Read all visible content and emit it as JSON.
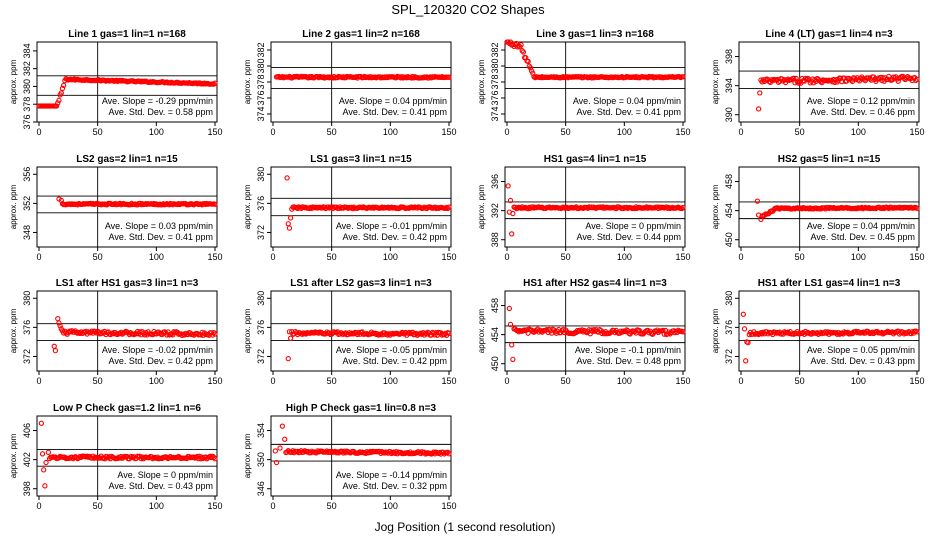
{
  "figure": {
    "title": "SPL_120320  CO2 Shapes",
    "xlabel": "Jog Position (1 second resolution)",
    "ylabel": "approx. ppm",
    "point_color": "#ff0000"
  },
  "chart_data": [
    {
      "type": "scatter",
      "title": "Line 1 gas=1 lin=1 n=168",
      "xlim": [
        0,
        150
      ],
      "xticks": [
        0,
        50,
        100,
        150
      ],
      "ylim": [
        376,
        385
      ],
      "yticks": [
        376,
        378,
        380,
        382,
        384
      ],
      "hlines": [
        381.2,
        379.0
      ],
      "vline": 50,
      "slope": "Ave. Slope = -0.29  ppm/min",
      "std": "Ave. Std. Dev. = 0.58  ppm",
      "series": [
        {
          "segments": [
            {
              "x0": 0,
              "x1": 15,
              "step": 1,
              "y0": 377.8,
              "y1": 377.8,
              "noise": 0
            },
            {
              "x0": 16,
              "x1": 22,
              "step": 1,
              "y0": 378.0,
              "y1": 380.6,
              "noise": 0.2
            },
            {
              "x0": 23,
              "x1": 150,
              "step": 1,
              "y0": 380.8,
              "y1": 380.3,
              "noise": 0.07
            }
          ]
        }
      ]
    },
    {
      "type": "scatter",
      "title": "Line 2 gas=1 lin=2 n=168",
      "xlim": [
        0,
        150
      ],
      "xticks": [
        0,
        50,
        100,
        150
      ],
      "ylim": [
        373,
        383
      ],
      "yticks": [
        374,
        376,
        378,
        380,
        382
      ],
      "hlines": [
        379.8,
        377.2
      ],
      "vline": 50,
      "slope": "Ave. Slope = 0.04  ppm/min",
      "std": "Ave. Std. Dev. = 0.41  ppm",
      "series": [
        {
          "segments": [
            {
              "x0": 3,
              "x1": 150,
              "step": 1,
              "y0": 378.6,
              "y1": 378.6,
              "noise": 0.1
            }
          ]
        }
      ]
    },
    {
      "type": "scatter",
      "title": "Line 3 gas=1 lin=3 n=168",
      "xlim": [
        0,
        150
      ],
      "xticks": [
        0,
        50,
        100,
        150
      ],
      "ylim": [
        373,
        383
      ],
      "yticks": [
        374,
        376,
        378,
        380,
        382
      ],
      "hlines": [
        379.8,
        377.2
      ],
      "vline": 50,
      "slope": "Ave. Slope = 0.04  ppm/min",
      "std": "Ave. Std. Dev. = 0.41  ppm",
      "series": [
        {
          "segments": [
            {
              "x0": 0,
              "x1": 12,
              "step": 1,
              "y0": 383.0,
              "y1": 382.4,
              "noise": 0.25
            },
            {
              "x0": 13,
              "x1": 22,
              "step": 1,
              "y0": 382.0,
              "y1": 379.0,
              "noise": 0.3
            },
            {
              "x0": 23,
              "x1": 150,
              "step": 1,
              "y0": 378.6,
              "y1": 378.6,
              "noise": 0.08
            }
          ]
        }
      ]
    },
    {
      "type": "scatter",
      "title": "Line 4 (LT) gas=1 lin=4 n=3",
      "xlim": [
        0,
        150
      ],
      "xticks": [
        0,
        50,
        100,
        150
      ],
      "ylim": [
        389,
        400
      ],
      "yticks": [
        390,
        394,
        398
      ],
      "hlines": [
        396.0,
        393.6
      ],
      "vline": 50,
      "slope": "Ave. Slope = 0.12  ppm/min",
      "std": "Ave. Std. Dev. = 0.46  ppm",
      "series": [
        {
          "points": [
            [
              15,
              390.8
            ],
            [
              16,
              393.0
            ]
          ],
          "segments": [
            {
              "x0": 17,
              "x1": 150,
              "step": 1,
              "y0": 394.6,
              "y1": 395.0,
              "noise": 0.35
            }
          ]
        }
      ]
    },
    {
      "type": "scatter",
      "title": "LS2 gas=2 lin=1 n=15",
      "xlim": [
        0,
        150
      ],
      "xticks": [
        0,
        50,
        100,
        150
      ],
      "ylim": [
        346,
        357
      ],
      "yticks": [
        348,
        352,
        356
      ],
      "hlines": [
        353.0,
        350.7
      ],
      "vline": 50,
      "slope": "Ave. Slope = 0.03  ppm/min",
      "std": "Ave. Std. Dev. = 0.41  ppm",
      "series": [
        {
          "points": [
            [
              17,
              352.6
            ],
            [
              19,
              352.4
            ]
          ],
          "segments": [
            {
              "x0": 20,
              "x1": 150,
              "step": 1,
              "y0": 351.9,
              "y1": 351.9,
              "noise": 0.1
            }
          ]
        }
      ]
    },
    {
      "type": "scatter",
      "title": "LS1 gas=3 lin=1 n=15",
      "xlim": [
        0,
        150
      ],
      "xticks": [
        0,
        50,
        100,
        150
      ],
      "ylim": [
        370,
        381
      ],
      "yticks": [
        372,
        376,
        380
      ],
      "hlines": [
        376.7,
        374.3
      ],
      "vline": 50,
      "slope": "Ave. Slope = -0.01  ppm/min",
      "std": "Ave. Std. Dev. = 0.42  ppm",
      "series": [
        {
          "points": [
            [
              12,
              379.5
            ],
            [
              13,
              373.2
            ],
            [
              14,
              372.6
            ],
            [
              15,
              374.0
            ],
            [
              16,
              375.2
            ]
          ],
          "segments": [
            {
              "x0": 17,
              "x1": 150,
              "step": 1,
              "y0": 375.4,
              "y1": 375.4,
              "noise": 0.12
            }
          ]
        }
      ]
    },
    {
      "type": "scatter",
      "title": "HS1 gas=4 lin=1 n=15",
      "xlim": [
        0,
        150
      ],
      "xticks": [
        0,
        50,
        100,
        150
      ],
      "ylim": [
        387,
        398
      ],
      "yticks": [
        388,
        392,
        396
      ],
      "hlines": [
        393.2,
        390.9
      ],
      "vline": 50,
      "slope": "Ave. Slope = 0  ppm/min",
      "std": "Ave. Std. Dev. = 0.44  ppm",
      "series": [
        {
          "points": [
            [
              1,
              395.4
            ],
            [
              2,
              391.8
            ],
            [
              3,
              393.4
            ],
            [
              4,
              388.8
            ],
            [
              5,
              391.6
            ]
          ],
          "segments": [
            {
              "x0": 6,
              "x1": 150,
              "step": 1,
              "y0": 392.4,
              "y1": 392.4,
              "noise": 0.12
            }
          ]
        }
      ]
    },
    {
      "type": "scatter",
      "title": "HS2 gas=5 lin=1 n=15",
      "xlim": [
        0,
        150
      ],
      "xticks": [
        0,
        50,
        100,
        150
      ],
      "ylim": [
        449,
        460
      ],
      "yticks": [
        450,
        454,
        458
      ],
      "hlines": [
        455.2,
        452.9
      ],
      "vline": 50,
      "slope": "Ave. Slope = 0.04  ppm/min",
      "std": "Ave. Std. Dev. = 0.45  ppm",
      "series": [
        {
          "points": [
            [
              14,
              455.3
            ],
            [
              15,
              453.4
            ],
            [
              17,
              452.8
            ]
          ],
          "segments": [
            {
              "x0": 18,
              "x1": 28,
              "step": 1,
              "y0": 453.2,
              "y1": 454.1,
              "noise": 0.1
            },
            {
              "x0": 29,
              "x1": 150,
              "step": 1,
              "y0": 454.3,
              "y1": 454.4,
              "noise": 0.1
            }
          ]
        }
      ]
    },
    {
      "type": "scatter",
      "title": "LS1 after HS1 gas=3 lin=1 n=3",
      "xlim": [
        0,
        150
      ],
      "xticks": [
        0,
        50,
        100,
        150
      ],
      "ylim": [
        370,
        381
      ],
      "yticks": [
        372,
        376,
        380
      ],
      "hlines": [
        376.5,
        374.2
      ],
      "vline": 50,
      "slope": "Ave. Slope = -0.02  ppm/min",
      "std": "Ave. Std. Dev. = 0.42  ppm",
      "series": [
        {
          "points": [
            [
              13,
              373.4
            ],
            [
              14,
              372.8
            ],
            [
              16,
              377.2
            ],
            [
              17,
              376.6
            ],
            [
              18,
              376.2
            ],
            [
              19,
              375.8
            ]
          ],
          "segments": [
            {
              "x0": 20,
              "x1": 150,
              "step": 1,
              "y0": 375.3,
              "y1": 375.1,
              "noise": 0.25
            }
          ]
        }
      ]
    },
    {
      "type": "scatter",
      "title": "LS1 after LS2 gas=3 lin=1 n=3",
      "xlim": [
        0,
        150
      ],
      "xticks": [
        0,
        50,
        100,
        150
      ],
      "ylim": [
        370,
        381
      ],
      "yticks": [
        372,
        376,
        380
      ],
      "hlines": [
        376.5,
        374.2
      ],
      "vline": 50,
      "slope": "Ave. Slope = -0.05  ppm/min",
      "std": "Ave. Std. Dev. = 0.42  ppm",
      "series": [
        {
          "points": [
            [
              13,
              371.7
            ],
            [
              14,
              375.4
            ],
            [
              15,
              374.5
            ]
          ],
          "segments": [
            {
              "x0": 16,
              "x1": 150,
              "step": 1,
              "y0": 375.2,
              "y1": 375.1,
              "noise": 0.22
            }
          ]
        }
      ]
    },
    {
      "type": "scatter",
      "title": "HS1 after HS2 gas=4 lin=1 n=3",
      "xlim": [
        0,
        150
      ],
      "xticks": [
        0,
        50,
        100,
        150
      ],
      "ylim": [
        449,
        460
      ],
      "yticks": [
        450,
        454,
        458
      ],
      "hlines": [
        455.2,
        452.9
      ],
      "vline": 50,
      "slope": "Ave. Slope = -0.1  ppm/min",
      "std": "Ave. Std. Dev. = 0.48  ppm",
      "series": [
        {
          "points": [
            [
              2,
              457.6
            ],
            [
              3,
              455.4
            ],
            [
              4,
              452.6
            ],
            [
              5,
              450.6
            ]
          ],
          "segments": [
            {
              "x0": 6,
              "x1": 150,
              "step": 1,
              "y0": 454.5,
              "y1": 454.3,
              "noise": 0.3
            }
          ]
        }
      ]
    },
    {
      "type": "scatter",
      "title": "HS1 after LS1 gas=4 lin=1 n=3",
      "xlim": [
        0,
        150
      ],
      "xticks": [
        0,
        50,
        100,
        150
      ],
      "ylim": [
        370,
        381
      ],
      "yticks": [
        372,
        376,
        380
      ],
      "hlines": [
        376.5,
        374.2
      ],
      "vline": 50,
      "slope": "Ave. Slope = 0.05  ppm/min",
      "std": "Ave. Std. Dev. = 0.43  ppm",
      "series": [
        {
          "points": [
            [
              2,
              377.8
            ],
            [
              3,
              375.8
            ],
            [
              4,
              371.4
            ],
            [
              5,
              374.0
            ],
            [
              6,
              373.9
            ]
          ],
          "segments": [
            {
              "x0": 7,
              "x1": 150,
              "step": 1,
              "y0": 375.2,
              "y1": 375.3,
              "noise": 0.2
            }
          ]
        }
      ]
    },
    {
      "type": "scatter",
      "title": "Low P Check gas=1.2 lin=1 n=6",
      "xlim": [
        0,
        150
      ],
      "xticks": [
        0,
        50,
        100,
        150
      ],
      "ylim": [
        397,
        408
      ],
      "yticks": [
        398,
        402,
        406
      ],
      "hlines": [
        403.4,
        401.1
      ],
      "vline": 50,
      "slope": "Ave. Slope = 0  ppm/min",
      "std": "Ave. Std. Dev. = 0.43  ppm",
      "series": [
        {
          "points": [
            [
              2,
              407.0
            ],
            [
              3,
              402.8
            ],
            [
              4,
              400.6
            ],
            [
              5,
              398.4
            ],
            [
              6,
              401.6
            ],
            [
              8,
              403.0
            ]
          ],
          "segments": [
            {
              "x0": 9,
              "x1": 150,
              "step": 1,
              "y0": 402.3,
              "y1": 402.3,
              "noise": 0.18
            }
          ]
        }
      ]
    },
    {
      "type": "scatter",
      "title": "High P Check gas=1 lin=0.8 n=3",
      "xlim": [
        0,
        150
      ],
      "xticks": [
        0,
        50,
        100,
        150
      ],
      "ylim": [
        345,
        356
      ],
      "yticks": [
        346,
        350,
        354
      ],
      "hlines": [
        352.1,
        349.8
      ],
      "vline": 50,
      "slope": "Ave. Slope = -0.14  ppm/min",
      "std": "Ave. Std. Dev. = 0.32  ppm",
      "series": [
        {
          "points": [
            [
              2,
              351.2
            ],
            [
              3,
              349.6
            ],
            [
              6,
              351.6
            ],
            [
              8,
              354.6
            ],
            [
              10,
              352.8
            ]
          ],
          "segments": [
            {
              "x0": 11,
              "x1": 150,
              "step": 1,
              "y0": 351.1,
              "y1": 350.9,
              "noise": 0.15
            }
          ]
        }
      ]
    }
  ]
}
